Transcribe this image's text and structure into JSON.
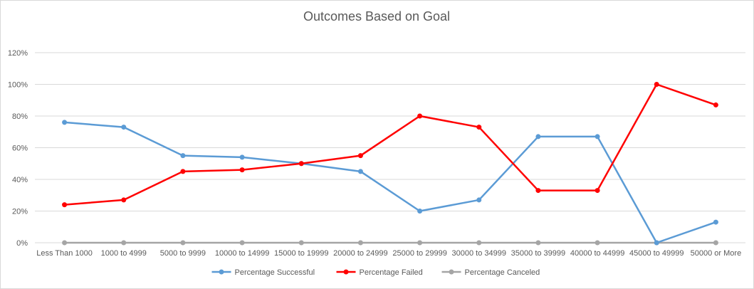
{
  "chart_data": {
    "type": "line",
    "title": "Outcomes Based on Goal",
    "xlabel": "",
    "ylabel": "",
    "categories": [
      "Less Than 1000",
      "1000 to 4999",
      "5000 to 9999",
      "10000 to 14999",
      "15000 to 19999",
      "20000 to 24999",
      "25000 to 29999",
      "30000 to 34999",
      "35000 to 39999",
      "40000 to 44999",
      "45000 to 49999",
      "50000 or More"
    ],
    "ylim": [
      0,
      120
    ],
    "yticks": [
      0,
      20,
      40,
      60,
      80,
      100,
      120
    ],
    "ytick_labels": [
      "0%",
      "20%",
      "40%",
      "60%",
      "80%",
      "100%",
      "120%"
    ],
    "grid": true,
    "legend_position": "bottom",
    "series": [
      {
        "name": "Percentage Successful",
        "color": "#5b9bd5",
        "values": [
          76,
          73,
          55,
          54,
          50,
          45,
          20,
          27,
          67,
          67,
          0,
          13
        ]
      },
      {
        "name": "Percentage Failed",
        "color": "#ff0000",
        "values": [
          24,
          27,
          45,
          46,
          50,
          55,
          80,
          73,
          33,
          33,
          100,
          87
        ]
      },
      {
        "name": "Percentage Canceled",
        "color": "#a5a5a5",
        "values": [
          0,
          0,
          0,
          0,
          0,
          0,
          0,
          0,
          0,
          0,
          0,
          0
        ]
      }
    ]
  }
}
